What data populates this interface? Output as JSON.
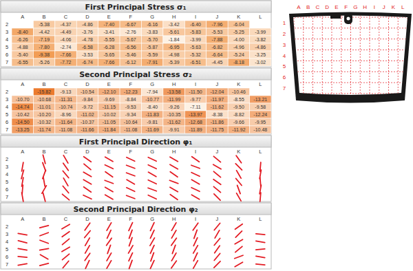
{
  "chart_data": [
    {
      "type": "heatmap",
      "title": "First Principal Stress σ₁",
      "x": [
        "A",
        "B",
        "C",
        "D",
        "E",
        "F",
        "G",
        "H",
        "I",
        "J",
        "K",
        "L"
      ],
      "y": [
        "2",
        "3",
        "4",
        "5",
        "6",
        "7"
      ],
      "cells": [
        [
          null,
          -5.38,
          -4.37,
          -4.86,
          -7.4,
          -6.67,
          -6.16,
          -3.42,
          -6.4,
          -7.96,
          -6.04,
          null
        ],
        [
          -8.4,
          -4.42,
          -4.49,
          -3.76,
          -3.41,
          -2.76,
          -3.83,
          -5.61,
          -5.83,
          -5.53,
          -5.25,
          -3.99
        ],
        [
          -6.26,
          -7.19,
          -4.06,
          -4.78,
          -5.55,
          -5.67,
          -5.7,
          -1.84,
          -3.99,
          -7.88,
          -4.0,
          -3.82
        ],
        [
          -4.88,
          -7.8,
          -2.74,
          -6.58,
          -6.28,
          -6.56,
          -5.87,
          -6.95,
          -5.63,
          -6.82,
          -4.96,
          -4.86
        ],
        [
          -5.4,
          -9.38,
          -7.66,
          -3.53,
          -5.65,
          -5.46,
          -5.59,
          -4.98,
          -5.32,
          -6.64,
          -5.24,
          -3.25
        ],
        [
          -6.55,
          -5.26,
          -7.72,
          -6.74,
          -7.66,
          -6.12,
          -7.91,
          -5.39,
          -6.51,
          -4.45,
          -8.18,
          -3.02
        ]
      ],
      "value_labels": [
        [
          null,
          "-5.38",
          "-4.37",
          "-4.86",
          "-7.40",
          "-6.67",
          "-6.16",
          "-3.42",
          "-6.40",
          "-7.96",
          "-6.04",
          null
        ],
        [
          "-8.40",
          "-4.42",
          "-4.49",
          "-3.76",
          "-3.41",
          "-2.76",
          "-3.83",
          "-5.61",
          "-5.83",
          "-5.53",
          "-5.25",
          "-3.99"
        ],
        [
          "-6.26",
          "-7.19",
          "-4.06",
          "-4.78",
          "-5.55",
          "-5.67",
          "-5.70",
          "-1.84",
          "-3.99",
          "-7.88",
          "-4.00",
          "-3.82"
        ],
        [
          "-4.88",
          "-7.80",
          "-2.74",
          "-6.58",
          "-6.28",
          "-6.56",
          "-5.87",
          "-6.95",
          "-5.63",
          "-6.82",
          "-4.96",
          "-4.86"
        ],
        [
          "-5.40",
          "-9.38",
          "-7.66",
          "-3.53",
          "-5.65",
          "-5.46",
          "-5.59",
          "-4.98",
          "-5.32",
          "-6.64",
          "-5.24",
          "-3.25"
        ],
        [
          "-6.55",
          "-5.26",
          "-7.72",
          "-6.74",
          "-7.66",
          "-6.12",
          "-7.91",
          "-5.39",
          "-6.51",
          "-4.45",
          "-8.18",
          "-3.02"
        ]
      ],
      "color": "#f29d55",
      "data_labels": true
    },
    {
      "type": "heatmap",
      "title": "Second Principal Stress σ₂",
      "x": [
        "A",
        "B",
        "C",
        "D",
        "E",
        "F",
        "G",
        "H",
        "I",
        "J",
        "K",
        "L"
      ],
      "y": [
        "2",
        "3",
        "4",
        "5",
        "6",
        "7"
      ],
      "cells": [
        [
          null,
          -15.82,
          -9.13,
          -10.54,
          -12.1,
          -12.23,
          -7.94,
          -13.58,
          -11.5,
          -12.04,
          -10.46,
          null
        ],
        [
          -10.7,
          -10.68,
          -11.31,
          -9.84,
          -9.69,
          -8.84,
          -10.77,
          -11.99,
          -9.77,
          -11.97,
          -8.55,
          -13.21
        ],
        [
          -14.74,
          -11.01,
          -10.74,
          -9.72,
          -11.15,
          -9.53,
          -8.4,
          -9.26,
          -7.11,
          -11.62,
          -9.5,
          -9.58
        ],
        [
          -10.42,
          -10.2,
          -8.96,
          -11.02,
          -10.02,
          -9.34,
          -11.83,
          -10.35,
          -13.97,
          -8.38,
          -8.82,
          -12.24
        ],
        [
          -14.5,
          -10.32,
          -11.64,
          -10.37,
          -11.05,
          -10.64,
          -9.81,
          -11.62,
          -12.68,
          -11.86,
          -9.66,
          -9.95
        ],
        [
          -13.25,
          -11.74,
          -11.08,
          -11.66,
          -11.84,
          -11.08,
          -11.69,
          -9.91,
          -11.89,
          -11.75,
          -11.92,
          -10.48
        ]
      ],
      "value_labels": [
        [
          null,
          "-15.82",
          "-9.13",
          "-10.54",
          "-12.10",
          "-12.23",
          "-7.94",
          "-13.58",
          "-11.50",
          "-12.04",
          "-10.46",
          null
        ],
        [
          "-10.70",
          "-10.68",
          "-11.31",
          "-9.84",
          "-9.69",
          "-8.84",
          "-10.77",
          "-11.99",
          "-9.77",
          "-11.97",
          "-8.55",
          "-13.21"
        ],
        [
          "-14.74",
          "-11.01",
          "-10.74",
          "-9.72",
          "-11.15",
          "-9.53",
          "-8.40",
          "-9.26",
          "-7.11",
          "-11.62",
          "-9.50",
          "-9.58"
        ],
        [
          "-10.42",
          "-10.20",
          "-8.96",
          "-11.02",
          "-10.02",
          "-9.34",
          "-11.83",
          "-10.35",
          "-13.97",
          "-8.38",
          "-8.82",
          "-12.24"
        ],
        [
          "-14.50",
          "-10.32",
          "-11.64",
          "-10.37",
          "-11.05",
          "-10.64",
          "-9.81",
          "-11.62",
          "-12.68",
          "-11.86",
          "-9.66",
          "-9.95"
        ],
        [
          "-13.25",
          "-11.74",
          "-11.08",
          "-11.66",
          "-11.84",
          "-11.08",
          "-11.69",
          "-9.91",
          "-11.89",
          "-11.75",
          "-11.92",
          "-10.48"
        ]
      ],
      "color": "#ec7b2e",
      "data_labels": true
    },
    {
      "type": "direction",
      "title": "First Principal Direction φ₁",
      "x": [
        "A",
        "B",
        "C",
        "D",
        "E",
        "F",
        "G",
        "H",
        "I",
        "J",
        "K",
        "L"
      ],
      "y": [
        "2",
        "3",
        "4",
        "5",
        "6",
        "7"
      ],
      "angles": [
        [
          null,
          -75,
          -60,
          -35,
          -30,
          -25,
          -25,
          -30,
          -35,
          -40,
          -55,
          null
        ],
        [
          80,
          -70,
          -55,
          -40,
          -25,
          -20,
          -25,
          -30,
          -20,
          -30,
          -45,
          85
        ],
        [
          75,
          70,
          -50,
          -30,
          -35,
          -20,
          -30,
          -35,
          -25,
          -40,
          -60,
          80
        ],
        [
          80,
          -80,
          -60,
          -30,
          -20,
          -30,
          -25,
          -20,
          -30,
          -35,
          -50,
          -85
        ],
        [
          85,
          60,
          -50,
          -35,
          -30,
          -25,
          -20,
          -30,
          -25,
          -40,
          -70,
          80
        ],
        [
          -80,
          -75,
          -40,
          -25,
          -30,
          -20,
          -25,
          -35,
          -30,
          -45,
          -60,
          85
        ]
      ],
      "color": "#e31b23"
    },
    {
      "type": "direction",
      "title": "Second Principal Direction φ₂",
      "x": [
        "A",
        "B",
        "C",
        "D",
        "E",
        "F",
        "G",
        "H",
        "I",
        "J",
        "K",
        "L"
      ],
      "y": [
        "2",
        "3",
        "4",
        "5",
        "6",
        "7"
      ],
      "angles": [
        [
          null,
          15,
          30,
          55,
          60,
          65,
          65,
          60,
          55,
          50,
          35,
          null
        ],
        [
          -10,
          20,
          35,
          50,
          65,
          70,
          65,
          60,
          70,
          60,
          45,
          -5
        ],
        [
          -15,
          -20,
          40,
          60,
          55,
          70,
          60,
          55,
          65,
          50,
          30,
          -10
        ],
        [
          -10,
          10,
          30,
          60,
          70,
          60,
          65,
          70,
          60,
          55,
          40,
          5
        ],
        [
          -5,
          -30,
          40,
          55,
          60,
          65,
          70,
          60,
          65,
          50,
          20,
          -10
        ],
        [
          10,
          15,
          50,
          65,
          60,
          70,
          65,
          55,
          60,
          45,
          30,
          -5
        ]
      ],
      "color": "#e31b23"
    }
  ],
  "windshield": {
    "columns": [
      "A",
      "B",
      "C",
      "D",
      "E",
      "F",
      "G",
      "H",
      "I",
      "J",
      "K",
      "L"
    ],
    "rows": [
      "1",
      "2",
      "3",
      "4",
      "5",
      "6",
      "7"
    ],
    "color": "#e31b23"
  }
}
